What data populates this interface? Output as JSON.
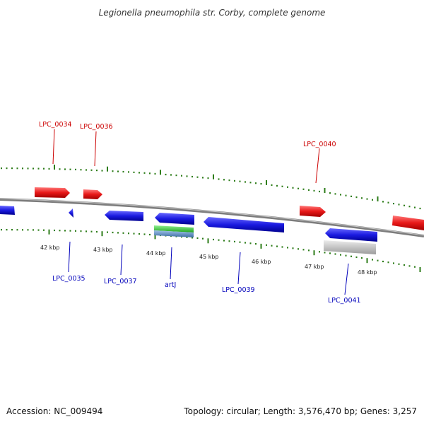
{
  "title": "Legionella pneumophila str. Corby, complete genome",
  "footer": {
    "accession": "Accession: NC_009494",
    "summary": "Topology: circular; Length: 3,576,470 bp; Genes: 3,257"
  },
  "colors": {
    "forward": "#e81818",
    "reverse": "#1a1ae0",
    "rna": "#3fcf3f",
    "misc": "#5b8fc9",
    "pseudo": "#c4c4c4",
    "backbone": "#8a8a8a",
    "ticks": "#2e7d1a"
  },
  "kbp_labels": [
    "42 kbp",
    "43 kbp",
    "44 kbp",
    "45 kbp",
    "46 kbp",
    "47 kbp",
    "48 kbp"
  ],
  "gene_labels": {
    "forward": [
      "LPC_0034",
      "LPC_0036",
      "LPC_0040"
    ],
    "reverse": [
      "LPC_0035",
      "LPC_0037",
      "artJ",
      "LPC_0039",
      "LPC_0041"
    ]
  }
}
